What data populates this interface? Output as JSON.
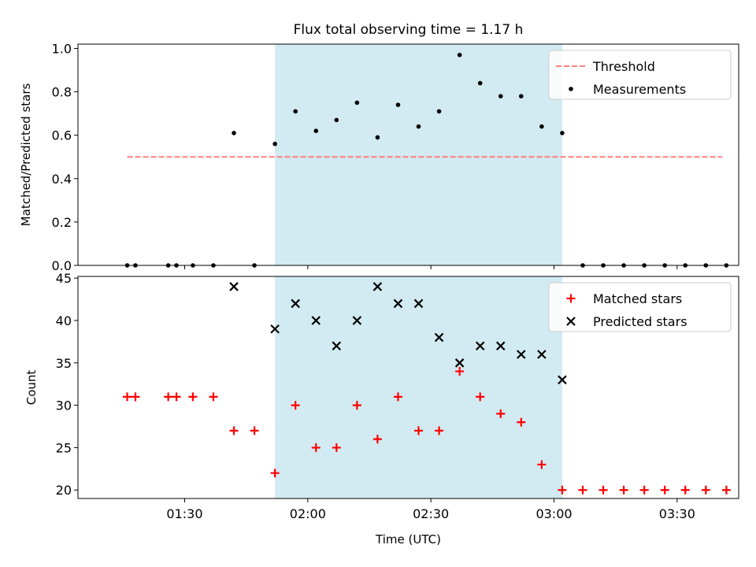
{
  "chart_data": {
    "title": "Flux total observing time = 1.17 h",
    "xlabel": "Time (UTC)",
    "x_ticks": [
      "01:30",
      "02:00",
      "02:30",
      "03:00",
      "03:30"
    ],
    "x_range_minutes": [
      64,
      225
    ],
    "shaded_region": {
      "start": "01:52",
      "end": "03:02",
      "color": "#add8e6"
    },
    "panels": [
      {
        "type": "scatter",
        "ylabel": "Matched/Predicted stars",
        "ylim": [
          0.0,
          1.02
        ],
        "yticks": [
          0.0,
          0.2,
          0.4,
          0.6,
          0.8,
          1.0
        ],
        "ytick_labels": [
          "0.0",
          "0.2",
          "0.4",
          "0.6",
          "0.8",
          "1.0"
        ],
        "legend_position": "upper right",
        "series": [
          {
            "name": "Threshold",
            "kind": "dashed-line",
            "color": "#ff7f7f",
            "x": [
              "01:16",
              "03:41"
            ],
            "y": [
              0.5,
              0.5
            ]
          },
          {
            "name": "Measurements",
            "kind": "dot",
            "color": "#000000",
            "x": [
              "01:16",
              "01:18",
              "01:26",
              "01:28",
              "01:32",
              "01:37",
              "01:42",
              "01:47",
              "01:52",
              "01:57",
              "02:02",
              "02:07",
              "02:12",
              "02:17",
              "02:22",
              "02:27",
              "02:32",
              "02:37",
              "02:42",
              "02:47",
              "02:52",
              "02:57",
              "03:02",
              "03:07",
              "03:12",
              "03:17",
              "03:22",
              "03:27",
              "03:32",
              "03:37",
              "03:42"
            ],
            "y": [
              0,
              0,
              0,
              0,
              0,
              0,
              0.61,
              0,
              0.56,
              0.71,
              0.62,
              0.67,
              0.75,
              0.59,
              0.74,
              0.64,
              0.71,
              0.97,
              0.84,
              0.78,
              0.78,
              0.64,
              0.61,
              0,
              0,
              0,
              0,
              0,
              0,
              0,
              0
            ]
          }
        ]
      },
      {
        "type": "scatter",
        "ylabel": "Count",
        "ylim": [
          19,
          45.2
        ],
        "yticks": [
          20,
          25,
          30,
          35,
          40,
          45
        ],
        "ytick_labels": [
          "20",
          "25",
          "30",
          "35",
          "40",
          "45"
        ],
        "legend_position": "upper right",
        "series": [
          {
            "name": "Matched stars",
            "kind": "plus",
            "color": "#ff0000",
            "x": [
              "01:16",
              "01:18",
              "01:26",
              "01:28",
              "01:32",
              "01:37",
              "01:42",
              "01:47",
              "01:52",
              "01:57",
              "02:02",
              "02:07",
              "02:12",
              "02:17",
              "02:22",
              "02:27",
              "02:32",
              "02:37",
              "02:42",
              "02:47",
              "02:52",
              "02:57",
              "03:02",
              "03:07",
              "03:12",
              "03:17",
              "03:22",
              "03:27",
              "03:32",
              "03:37",
              "03:42"
            ],
            "y": [
              31,
              31,
              31,
              31,
              31,
              31,
              27,
              27,
              22,
              30,
              25,
              25,
              30,
              26,
              31,
              27,
              27,
              34,
              31,
              29,
              28,
              23,
              20,
              20,
              20,
              20,
              20,
              20,
              20,
              20,
              20
            ]
          },
          {
            "name": "Predicted stars",
            "kind": "x",
            "color": "#000000",
            "x": [
              "01:42",
              "01:52",
              "01:57",
              "02:02",
              "02:07",
              "02:12",
              "02:17",
              "02:22",
              "02:27",
              "02:32",
              "02:37",
              "02:42",
              "02:47",
              "02:52",
              "02:57",
              "03:02"
            ],
            "y": [
              44,
              39,
              42,
              40,
              37,
              40,
              44,
              42,
              42,
              38,
              35,
              37,
              37,
              36,
              36,
              33
            ]
          }
        ]
      }
    ]
  }
}
